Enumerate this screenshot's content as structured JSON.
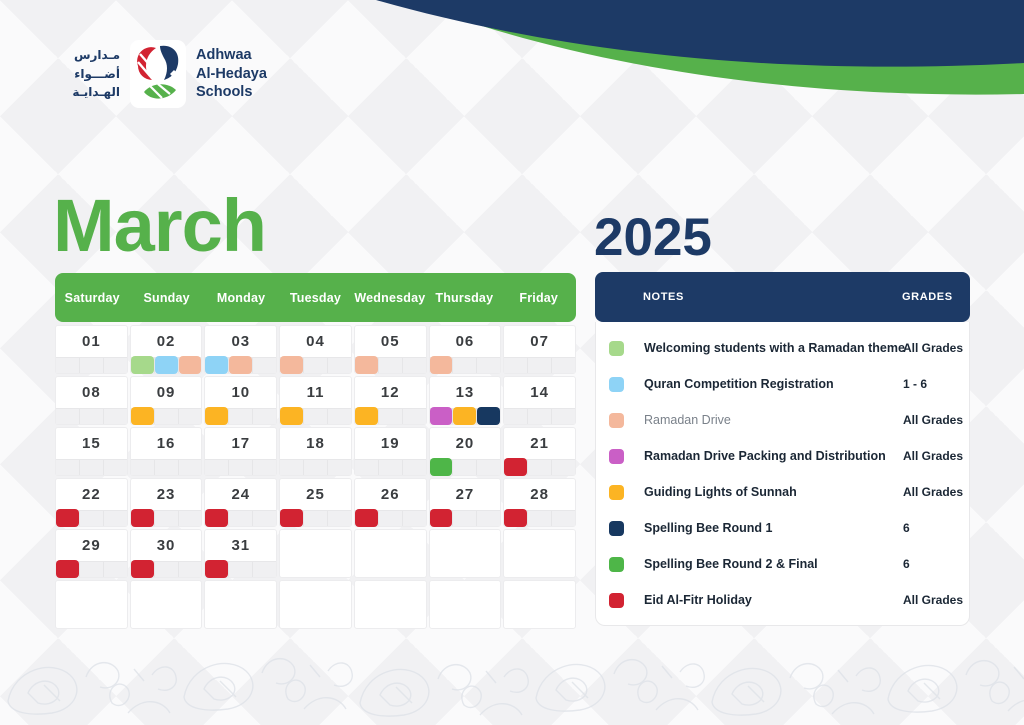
{
  "colors": {
    "green": "#56b14b",
    "green_bright": "#4eb648",
    "navy": "#1d3a66",
    "logo_red": "#d22332",
    "page_bg": "#f4f4f6"
  },
  "header": {
    "logo": {
      "arabic": [
        "مـدارس",
        "أضـــواء",
        "الهـدايـة"
      ],
      "english": [
        "Adhwaa",
        "Al-Hedaya",
        "Schools"
      ]
    },
    "month": "March",
    "year": "2025"
  },
  "calendar": {
    "day_headers": [
      "Saturday",
      "Sunday",
      "Monday",
      "Tuesday",
      "Wednesday",
      "Thursday",
      "Friday"
    ],
    "weeks": [
      [
        {
          "d": "01",
          "e": []
        },
        {
          "d": "02",
          "e": [
            "welcome",
            "quran",
            "drive"
          ]
        },
        {
          "d": "03",
          "e": [
            "quran",
            "drive"
          ]
        },
        {
          "d": "04",
          "e": [
            "drive"
          ]
        },
        {
          "d": "05",
          "e": [
            "drive"
          ]
        },
        {
          "d": "06",
          "e": [
            "drive"
          ]
        },
        {
          "d": "07",
          "e": []
        }
      ],
      [
        {
          "d": "08",
          "e": []
        },
        {
          "d": "09",
          "e": [
            "sunnah"
          ]
        },
        {
          "d": "10",
          "e": [
            "sunnah"
          ]
        },
        {
          "d": "11",
          "e": [
            "sunnah"
          ]
        },
        {
          "d": "12",
          "e": [
            "sunnah"
          ]
        },
        {
          "d": "13",
          "e": [
            "packing",
            "sunnah",
            "bee1"
          ]
        },
        {
          "d": "14",
          "e": []
        }
      ],
      [
        {
          "d": "15",
          "e": []
        },
        {
          "d": "16",
          "e": []
        },
        {
          "d": "17",
          "e": []
        },
        {
          "d": "18",
          "e": []
        },
        {
          "d": "19",
          "e": []
        },
        {
          "d": "20",
          "e": [
            "bee2"
          ]
        },
        {
          "d": "21",
          "e": [
            "eid"
          ]
        }
      ],
      [
        {
          "d": "22",
          "e": [
            "eid"
          ]
        },
        {
          "d": "23",
          "e": [
            "eid"
          ]
        },
        {
          "d": "24",
          "e": [
            "eid"
          ]
        },
        {
          "d": "25",
          "e": [
            "eid"
          ]
        },
        {
          "d": "26",
          "e": [
            "eid"
          ]
        },
        {
          "d": "27",
          "e": [
            "eid"
          ]
        },
        {
          "d": "28",
          "e": [
            "eid"
          ]
        }
      ],
      [
        {
          "d": "29",
          "e": [
            "eid"
          ]
        },
        {
          "d": "30",
          "e": [
            "eid"
          ]
        },
        {
          "d": "31",
          "e": [
            "eid"
          ]
        },
        {
          "d": "",
          "e": []
        },
        {
          "d": "",
          "e": []
        },
        {
          "d": "",
          "e": []
        },
        {
          "d": "",
          "e": []
        }
      ],
      [
        {
          "d": "",
          "e": []
        },
        {
          "d": "",
          "e": []
        },
        {
          "d": "",
          "e": []
        },
        {
          "d": "",
          "e": []
        },
        {
          "d": "",
          "e": []
        },
        {
          "d": "",
          "e": []
        },
        {
          "d": "",
          "e": []
        }
      ]
    ]
  },
  "notes": {
    "title": "NOTES",
    "grades_title": "GRADES",
    "items": [
      {
        "id": "welcome",
        "color": "#a6d98b",
        "label": "Welcoming students with a Ramadan theme",
        "grades": "All Grades",
        "muted": false
      },
      {
        "id": "quran",
        "color": "#8ed3f6",
        "label": "Quran Competition Registration",
        "grades": "1 - 6",
        "muted": false
      },
      {
        "id": "drive",
        "color": "#f4b89c",
        "label": "Ramadan Drive",
        "grades": "All Grades",
        "muted": true
      },
      {
        "id": "packing",
        "color": "#ca5fc6",
        "label": "Ramadan Drive Packing and Distribution",
        "grades": "All Grades",
        "muted": false
      },
      {
        "id": "sunnah",
        "color": "#fcb423",
        "label": "Guiding Lights of Sunnah",
        "grades": "All Grades",
        "muted": false
      },
      {
        "id": "bee1",
        "color": "#173860",
        "label": "Spelling Bee Round 1",
        "grades": "6",
        "muted": false
      },
      {
        "id": "bee2",
        "color": "#4eb648",
        "label": "Spelling Bee Round 2 & Final",
        "grades": "6",
        "muted": false
      },
      {
        "id": "eid",
        "color": "#d22332",
        "label": "Eid Al-Fitr Holiday",
        "grades": "All Grades",
        "muted": false
      }
    ]
  }
}
